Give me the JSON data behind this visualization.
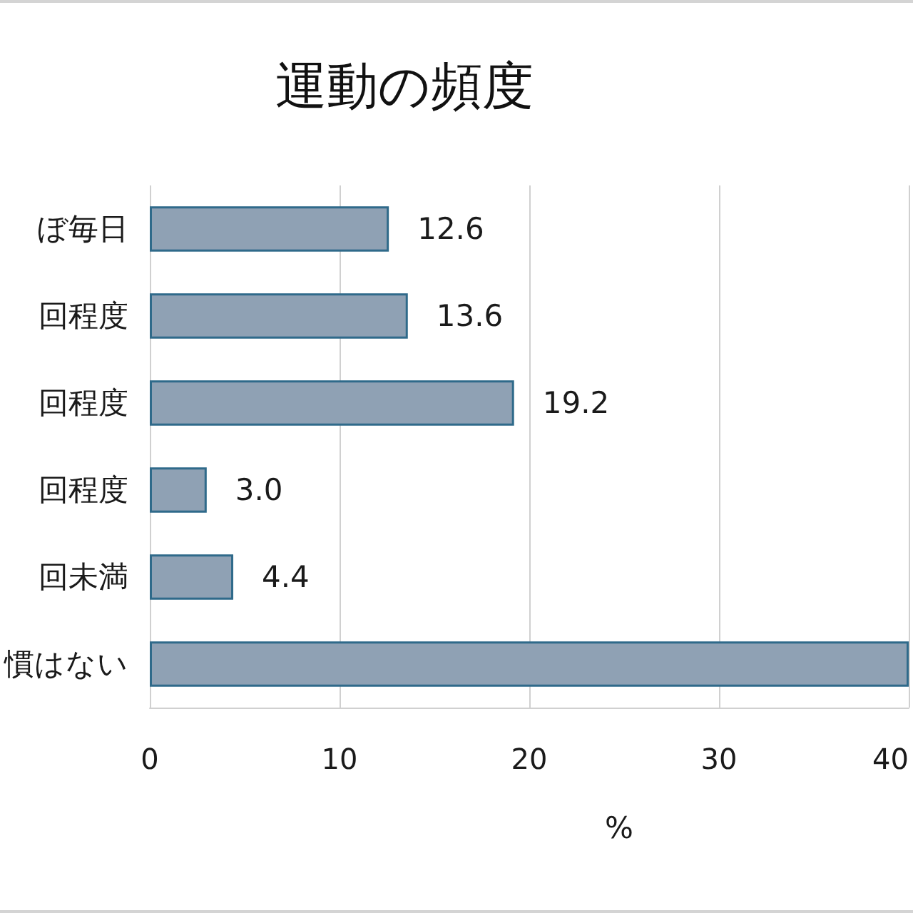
{
  "chart_data": {
    "type": "bar",
    "orientation": "horizontal",
    "title": "運動の頻度",
    "xlabel": "%",
    "categories": [
      "ぼ毎日",
      "回程度",
      "回程度",
      "回程度",
      "回未満",
      "慣はない"
    ],
    "values": [
      12.6,
      13.6,
      19.2,
      3.0,
      4.4,
      40
    ],
    "value_labels": [
      "12.6",
      "13.6",
      "19.2",
      "3.0",
      "4.4",
      null
    ],
    "color": "#8fa1b4",
    "xlim": [
      0,
      40
    ],
    "xticks": [
      0,
      10,
      20,
      30,
      40
    ],
    "grid": "x"
  }
}
